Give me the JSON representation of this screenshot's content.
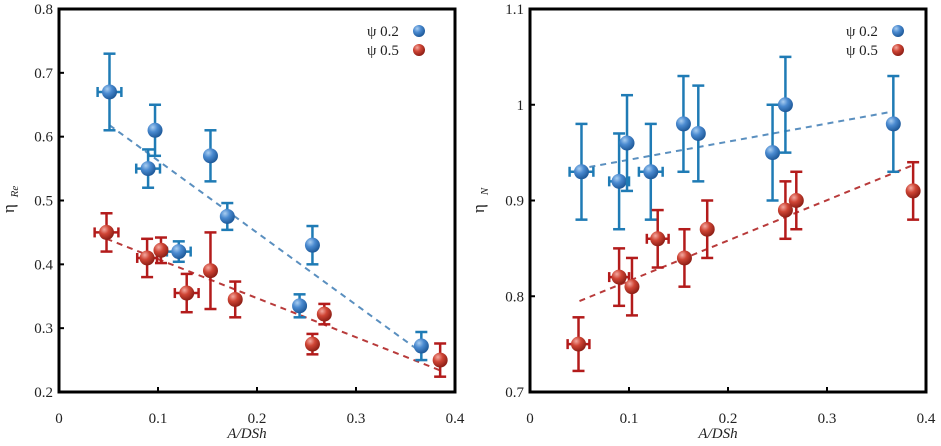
{
  "chart_data": [
    {
      "type": "scatter",
      "title": "",
      "xlabel": "A/DSh",
      "ylabel": "η",
      "ylabel_subscript": "Re",
      "xlim": [
        0,
        0.4
      ],
      "ylim": [
        0.2,
        0.8
      ],
      "x_ticks": [
        "0",
        "0.1",
        "0.2",
        "0.3",
        "0.4"
      ],
      "y_ticks": [
        "0.2",
        "0.3",
        "0.4",
        "0.5",
        "0.6",
        "0.7",
        "0.8"
      ],
      "grid": false,
      "legend": "top-right",
      "series": [
        {
          "name": "ψ 0.2",
          "color": "#3d7fc4",
          "error_color": "#1f7bb5",
          "points": [
            {
              "x": 0.051,
              "y": 0.67,
              "yerr": 0.06,
              "xerr": 0.012
            },
            {
              "x": 0.097,
              "y": 0.61,
              "yerr": 0.04,
              "xerr": 0
            },
            {
              "x": 0.09,
              "y": 0.55,
              "yerr": 0.03,
              "xerr": 0.012
            },
            {
              "x": 0.153,
              "y": 0.57,
              "yerr": 0.04,
              "xerr": 0
            },
            {
              "x": 0.17,
              "y": 0.475,
              "yerr": 0.021,
              "xerr": 0
            },
            {
              "x": 0.121,
              "y": 0.42,
              "yerr": 0.016,
              "xerr": 0.012
            },
            {
              "x": 0.256,
              "y": 0.43,
              "yerr": 0.03,
              "xerr": 0
            },
            {
              "x": 0.243,
              "y": 0.335,
              "yerr": 0.018,
              "xerr": 0
            },
            {
              "x": 0.366,
              "y": 0.272,
              "yerr": 0.022,
              "xerr": 0
            }
          ],
          "trendline": {
            "x": [
              0.051,
              0.366
            ],
            "y": [
              0.618,
              0.262
            ]
          }
        },
        {
          "name": "ψ 0.5",
          "color": "#c0392b",
          "error_color": "#b31b1b",
          "points": [
            {
              "x": 0.048,
              "y": 0.45,
              "yerr": 0.03,
              "xerr": 0.012
            },
            {
              "x": 0.089,
              "y": 0.41,
              "yerr": 0.03,
              "xerr": 0.01
            },
            {
              "x": 0.103,
              "y": 0.422,
              "yerr": 0.02,
              "xerr": 0
            },
            {
              "x": 0.129,
              "y": 0.355,
              "yerr": 0.03,
              "xerr": 0.012
            },
            {
              "x": 0.153,
              "y": 0.39,
              "yerr": 0.06,
              "xerr": 0
            },
            {
              "x": 0.178,
              "y": 0.345,
              "yerr": 0.028,
              "xerr": 0
            },
            {
              "x": 0.256,
              "y": 0.275,
              "yerr": 0.016,
              "xerr": 0
            },
            {
              "x": 0.268,
              "y": 0.322,
              "yerr": 0.016,
              "xerr": 0
            },
            {
              "x": 0.385,
              "y": 0.25,
              "yerr": 0.026,
              "xerr": 0
            }
          ],
          "trendline": {
            "x": [
              0.048,
              0.388
            ],
            "y": [
              0.44,
              0.232
            ]
          }
        }
      ]
    },
    {
      "type": "scatter",
      "title": "",
      "xlabel": "A/DSh",
      "ylabel": "η",
      "ylabel_subscript": "N",
      "xlim": [
        0,
        0.4
      ],
      "ylim": [
        0.7,
        1.1
      ],
      "x_ticks": [
        "0",
        "0.1",
        "0.2",
        "0.3",
        "0.4"
      ],
      "y_ticks": [
        "0.7",
        "0.8",
        "0.9",
        "1",
        "1.1"
      ],
      "grid": false,
      "legend": "top-right",
      "series": [
        {
          "name": "ψ 0.2",
          "color": "#3d7fc4",
          "error_color": "#1f7bb5",
          "points": [
            {
              "x": 0.052,
              "y": 0.93,
              "yerr": 0.05,
              "xerr": 0.012
            },
            {
              "x": 0.09,
              "y": 0.92,
              "yerr": 0.05,
              "xerr": 0.01
            },
            {
              "x": 0.098,
              "y": 0.96,
              "yerr": 0.05,
              "xerr": 0
            },
            {
              "x": 0.122,
              "y": 0.93,
              "yerr": 0.05,
              "xerr": 0.012
            },
            {
              "x": 0.155,
              "y": 0.98,
              "yerr": 0.05,
              "xerr": 0
            },
            {
              "x": 0.17,
              "y": 0.97,
              "yerr": 0.05,
              "xerr": 0
            },
            {
              "x": 0.245,
              "y": 0.95,
              "yerr": 0.05,
              "xerr": 0
            },
            {
              "x": 0.258,
              "y": 1.0,
              "yerr": 0.05,
              "xerr": 0
            },
            {
              "x": 0.367,
              "y": 0.98,
              "yerr": 0.05,
              "xerr": 0
            }
          ],
          "trendline": {
            "x": [
              0.06,
              0.367
            ],
            "y": [
              0.935,
              0.993
            ]
          }
        },
        {
          "name": "ψ 0.5",
          "color": "#c0392b",
          "error_color": "#b31b1b",
          "points": [
            {
              "x": 0.049,
              "y": 0.75,
              "yerr": 0.028,
              "xerr": 0.011
            },
            {
              "x": 0.09,
              "y": 0.82,
              "yerr": 0.03,
              "xerr": 0.01
            },
            {
              "x": 0.103,
              "y": 0.81,
              "yerr": 0.03,
              "xerr": 0
            },
            {
              "x": 0.129,
              "y": 0.86,
              "yerr": 0.03,
              "xerr": 0.011
            },
            {
              "x": 0.156,
              "y": 0.84,
              "yerr": 0.03,
              "xerr": 0
            },
            {
              "x": 0.179,
              "y": 0.87,
              "yerr": 0.03,
              "xerr": 0
            },
            {
              "x": 0.258,
              "y": 0.89,
              "yerr": 0.03,
              "xerr": 0
            },
            {
              "x": 0.269,
              "y": 0.9,
              "yerr": 0.03,
              "xerr": 0
            },
            {
              "x": 0.387,
              "y": 0.91,
              "yerr": 0.03,
              "xerr": 0
            }
          ],
          "trendline": {
            "x": [
              0.05,
              0.387
            ],
            "y": [
              0.795,
              0.937
            ]
          }
        }
      ]
    }
  ]
}
